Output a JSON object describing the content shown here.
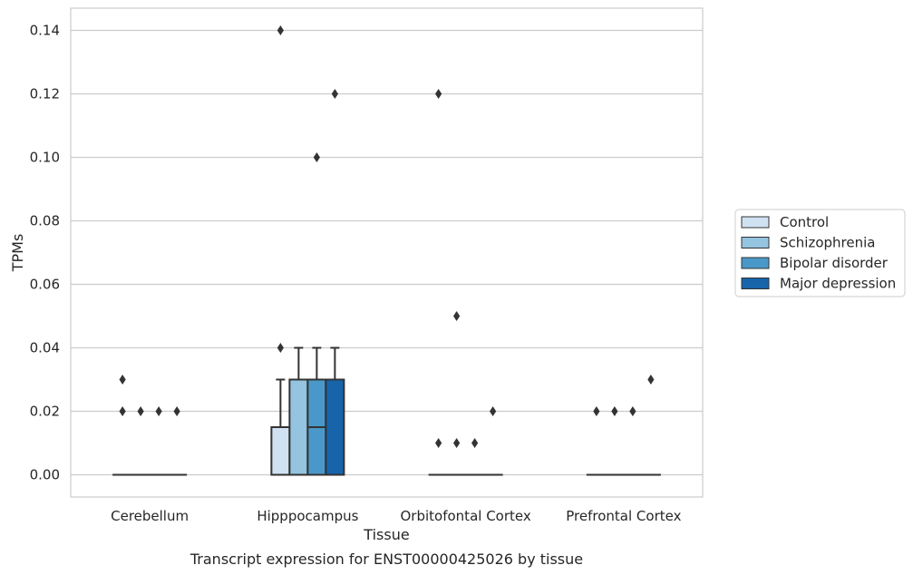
{
  "chart_data": {
    "type": "box",
    "title": "Transcript expression for ENST00000425026 by tissue",
    "xlabel": "Tissue",
    "ylabel": "TPMs",
    "ylim": [
      -0.007,
      0.147
    ],
    "yticks": [
      0.0,
      0.02,
      0.04,
      0.06,
      0.08,
      0.1,
      0.12,
      0.14
    ],
    "ytick_labels": [
      "0.00",
      "0.02",
      "0.04",
      "0.06",
      "0.08",
      "0.10",
      "0.12",
      "0.14"
    ],
    "categories": [
      "Cerebellum",
      "Hipppocampus",
      "Orbitofontal Cortex",
      "Prefrontal Cortex"
    ],
    "grid": "horizontal",
    "legend_position": "right",
    "series": [
      {
        "name": "Control",
        "color": "#d0e1f2",
        "boxes": [
          {
            "q1": 0,
            "median": 0,
            "q3": 0,
            "whisker_low": 0,
            "whisker_high": 0,
            "outliers": [
              0.03,
              0.02
            ]
          },
          {
            "q1": 0,
            "median": 0,
            "q3": 0.015,
            "whisker_low": 0,
            "whisker_high": 0.03,
            "outliers": [
              0.14,
              0.04
            ]
          },
          {
            "q1": 0,
            "median": 0,
            "q3": 0,
            "whisker_low": 0,
            "whisker_high": 0,
            "outliers": [
              0.12,
              0.01
            ]
          },
          {
            "q1": 0,
            "median": 0,
            "q3": 0,
            "whisker_low": 0,
            "whisker_high": 0,
            "outliers": [
              0.02
            ]
          }
        ]
      },
      {
        "name": "Schizophrenia",
        "color": "#94c4df",
        "boxes": [
          {
            "q1": 0,
            "median": 0,
            "q3": 0,
            "whisker_low": 0,
            "whisker_high": 0,
            "outliers": [
              0.02
            ]
          },
          {
            "q1": 0,
            "median": 0.03,
            "q3": 0.03,
            "whisker_low": 0,
            "whisker_high": 0.04,
            "outliers": []
          },
          {
            "q1": 0,
            "median": 0,
            "q3": 0,
            "whisker_low": 0,
            "whisker_high": 0,
            "outliers": [
              0.05,
              0.01
            ]
          },
          {
            "q1": 0,
            "median": 0,
            "q3": 0,
            "whisker_low": 0,
            "whisker_high": 0,
            "outliers": [
              0.02
            ]
          }
        ]
      },
      {
        "name": "Bipolar disorder",
        "color": "#4a98c9",
        "boxes": [
          {
            "q1": 0,
            "median": 0,
            "q3": 0,
            "whisker_low": 0,
            "whisker_high": 0,
            "outliers": [
              0.02
            ]
          },
          {
            "q1": 0,
            "median": 0.015,
            "q3": 0.03,
            "whisker_low": 0,
            "whisker_high": 0.04,
            "outliers": [
              0.1
            ]
          },
          {
            "q1": 0,
            "median": 0,
            "q3": 0,
            "whisker_low": 0,
            "whisker_high": 0,
            "outliers": [
              0.01
            ]
          },
          {
            "q1": 0,
            "median": 0,
            "q3": 0,
            "whisker_low": 0,
            "whisker_high": 0,
            "outliers": [
              0.02
            ]
          }
        ]
      },
      {
        "name": "Major depression",
        "color": "#1764ab",
        "boxes": [
          {
            "q1": 0,
            "median": 0,
            "q3": 0,
            "whisker_low": 0,
            "whisker_high": 0,
            "outliers": [
              0.02
            ]
          },
          {
            "q1": 0,
            "median": 0.03,
            "q3": 0.03,
            "whisker_low": 0,
            "whisker_high": 0.04,
            "outliers": [
              0.12
            ]
          },
          {
            "q1": 0,
            "median": 0,
            "q3": 0,
            "whisker_low": 0,
            "whisker_high": 0,
            "outliers": [
              0.02
            ]
          },
          {
            "q1": 0,
            "median": 0,
            "q3": 0,
            "whisker_low": 0,
            "whisker_high": 0,
            "outliers": [
              0.03
            ]
          }
        ]
      }
    ]
  }
}
